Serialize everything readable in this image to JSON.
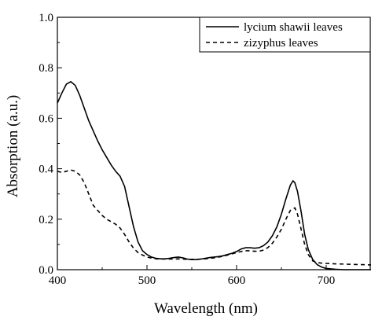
{
  "chart_data": {
    "type": "line",
    "xlabel": "Wavelength (nm)",
    "ylabel": "Absorption (a.u.)",
    "xlim": [
      400,
      750
    ],
    "ylim": [
      0.0,
      1.0
    ],
    "x_ticks": [
      400,
      500,
      600,
      700
    ],
    "x_tick_labels": [
      "400",
      "500",
      "600",
      "700"
    ],
    "y_ticks": [
      0.0,
      0.2,
      0.4,
      0.6,
      0.8,
      1.0
    ],
    "y_tick_labels": [
      "0.0",
      "0.2",
      "0.4",
      "0.6",
      "0.8",
      "1.0"
    ],
    "grid": false,
    "legend_position": "top-right",
    "series": [
      {
        "name": "lycium shawii leaves",
        "style": "solid",
        "color": "#000000",
        "x": [
          400,
          405,
          410,
          415,
          420,
          425,
          430,
          435,
          440,
          445,
          450,
          455,
          460,
          465,
          470,
          475,
          480,
          485,
          490,
          495,
          500,
          505,
          510,
          515,
          520,
          525,
          530,
          535,
          540,
          545,
          550,
          555,
          560,
          565,
          570,
          575,
          580,
          585,
          590,
          595,
          600,
          605,
          610,
          615,
          620,
          625,
          630,
          635,
          640,
          645,
          650,
          655,
          660,
          663,
          665,
          668,
          672,
          676,
          680,
          685,
          690,
          695,
          700,
          710,
          720,
          730,
          740,
          750
        ],
        "y": [
          0.66,
          0.7,
          0.735,
          0.745,
          0.73,
          0.69,
          0.64,
          0.59,
          0.55,
          0.51,
          0.475,
          0.445,
          0.415,
          0.39,
          0.37,
          0.33,
          0.25,
          0.17,
          0.11,
          0.075,
          0.06,
          0.05,
          0.045,
          0.043,
          0.043,
          0.045,
          0.048,
          0.05,
          0.047,
          0.042,
          0.04,
          0.04,
          0.042,
          0.045,
          0.048,
          0.05,
          0.052,
          0.055,
          0.06,
          0.065,
          0.072,
          0.082,
          0.087,
          0.087,
          0.085,
          0.087,
          0.095,
          0.11,
          0.135,
          0.17,
          0.22,
          0.28,
          0.335,
          0.352,
          0.345,
          0.31,
          0.23,
          0.14,
          0.08,
          0.04,
          0.02,
          0.01,
          0.005,
          0.002,
          0.0,
          0.0,
          0.0,
          0.0
        ]
      },
      {
        "name": "zizyphus leaves",
        "style": "dashed",
        "color": "#000000",
        "x": [
          400,
          405,
          410,
          415,
          420,
          425,
          430,
          435,
          440,
          445,
          450,
          455,
          460,
          465,
          470,
          475,
          480,
          485,
          490,
          495,
          500,
          505,
          510,
          515,
          520,
          525,
          530,
          535,
          540,
          545,
          550,
          555,
          560,
          565,
          570,
          575,
          580,
          585,
          590,
          595,
          600,
          605,
          610,
          615,
          620,
          625,
          630,
          635,
          640,
          645,
          650,
          655,
          660,
          665,
          668,
          672,
          676,
          680,
          685,
          690,
          695,
          700,
          710,
          720,
          730,
          740,
          750
        ],
        "y": [
          0.39,
          0.385,
          0.39,
          0.395,
          0.39,
          0.375,
          0.345,
          0.3,
          0.255,
          0.235,
          0.215,
          0.2,
          0.19,
          0.18,
          0.165,
          0.14,
          0.11,
          0.085,
          0.068,
          0.058,
          0.05,
          0.046,
          0.043,
          0.042,
          0.042,
          0.042,
          0.042,
          0.043,
          0.042,
          0.041,
          0.041,
          0.041,
          0.042,
          0.043,
          0.045,
          0.047,
          0.05,
          0.053,
          0.058,
          0.063,
          0.068,
          0.072,
          0.075,
          0.075,
          0.073,
          0.073,
          0.078,
          0.088,
          0.105,
          0.13,
          0.16,
          0.2,
          0.235,
          0.245,
          0.22,
          0.16,
          0.1,
          0.06,
          0.035,
          0.028,
          0.026,
          0.025,
          0.023,
          0.022,
          0.021,
          0.02,
          0.019
        ]
      }
    ]
  }
}
